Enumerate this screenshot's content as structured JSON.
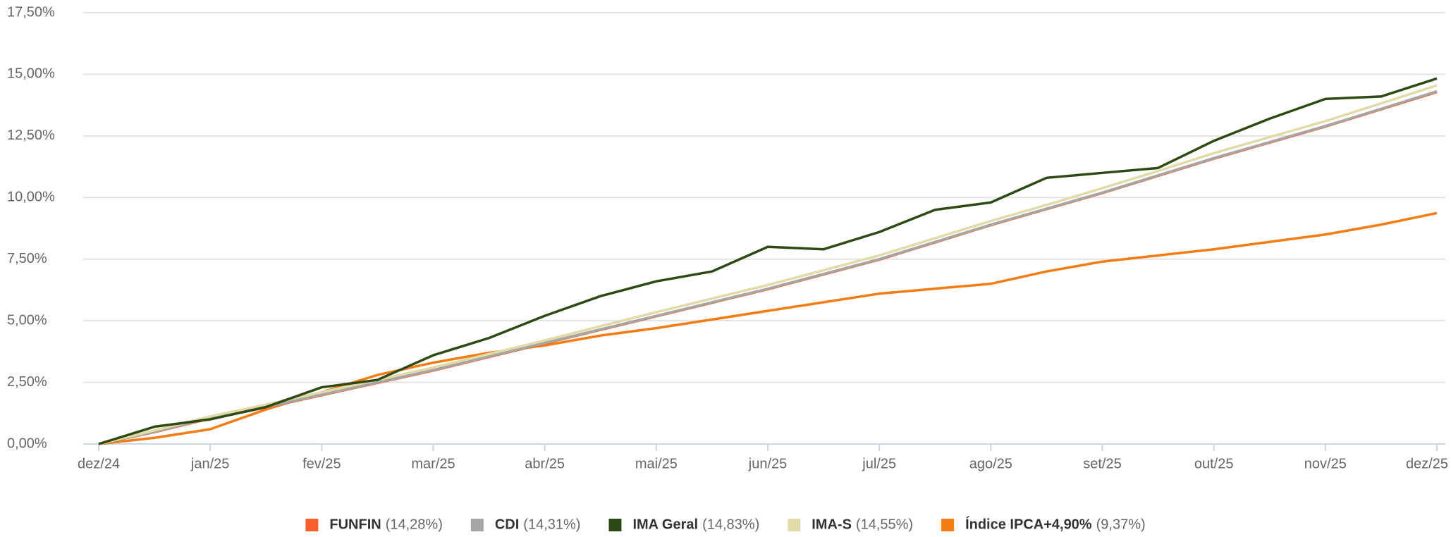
{
  "chart_data": {
    "type": "line",
    "categories": [
      "dez/24",
      null,
      "jan/25",
      null,
      "fev/25",
      null,
      "mar/25",
      null,
      "abr/25",
      null,
      "mai/25",
      null,
      "jun/25",
      null,
      "jul/25",
      null,
      "ago/25",
      null,
      "set/25",
      null,
      "out/25",
      null,
      "nov/25",
      null,
      "dez/25"
    ],
    "series": [
      {
        "name": "Índice IPCA+4,90%",
        "final_label": "(9,37%)",
        "color": "#f57c12",
        "values": [
          0,
          0.25,
          0.6,
          1.4,
          2.1,
          2.8,
          3.3,
          3.7,
          4.0,
          4.4,
          4.7,
          5.05,
          5.4,
          5.75,
          6.1,
          6.3,
          6.5,
          7.0,
          7.4,
          7.65,
          7.9,
          8.2,
          8.5,
          8.9,
          9.37
        ]
      },
      {
        "name": "FUNFIN",
        "final_label": "(14,28%)",
        "color": "#f7602b",
        "values": [
          0,
          0.48,
          1.03,
          1.48,
          1.98,
          2.48,
          2.98,
          3.53,
          4.08,
          4.63,
          5.18,
          5.73,
          6.28,
          6.88,
          7.48,
          8.18,
          8.88,
          9.53,
          10.18,
          10.88,
          11.58,
          12.23,
          12.88,
          13.58,
          14.28
        ]
      },
      {
        "name": "CDI",
        "final_label": "(14,31%)",
        "color": "#a6a6a6",
        "values": [
          0,
          0.5,
          1.05,
          1.5,
          2.0,
          2.5,
          3.0,
          3.55,
          4.1,
          4.65,
          5.2,
          5.75,
          6.3,
          6.9,
          7.5,
          8.2,
          8.9,
          9.55,
          10.2,
          10.9,
          11.6,
          12.25,
          12.9,
          13.6,
          14.31
        ]
      },
      {
        "name": "IMA-S",
        "final_label": "(14,55%)",
        "color": "#e2dba8",
        "values": [
          0,
          0.55,
          1.12,
          1.6,
          2.1,
          2.6,
          3.1,
          3.65,
          4.2,
          4.78,
          5.35,
          5.9,
          6.45,
          7.05,
          7.65,
          8.35,
          9.05,
          9.7,
          10.38,
          11.08,
          11.8,
          12.45,
          13.1,
          13.82,
          14.55
        ]
      },
      {
        "name": "IMA Geral",
        "final_label": "(14,83%)",
        "color": "#2d4a14",
        "values": [
          0,
          0.7,
          1.0,
          1.5,
          2.3,
          2.6,
          3.6,
          4.3,
          5.2,
          6.0,
          6.6,
          7.0,
          8.0,
          7.9,
          8.6,
          9.5,
          9.8,
          10.8,
          11.0,
          11.2,
          12.3,
          13.2,
          14.0,
          14.1,
          14.83
        ]
      }
    ],
    "legend_order": [
      1,
      2,
      4,
      3,
      0
    ],
    "ylim": [
      0,
      17.5
    ],
    "yticks": [
      {
        "value": 0,
        "label": "0,00%"
      },
      {
        "value": 2.5,
        "label": "2,50%"
      },
      {
        "value": 5,
        "label": "5,00%"
      },
      {
        "value": 7.5,
        "label": "7,50%"
      },
      {
        "value": 10,
        "label": "10,00%"
      },
      {
        "value": 12.5,
        "label": "12,50%"
      },
      {
        "value": 15,
        "label": "15,00%"
      },
      {
        "value": 17.5,
        "label": "17,50%"
      }
    ],
    "grid": true
  }
}
